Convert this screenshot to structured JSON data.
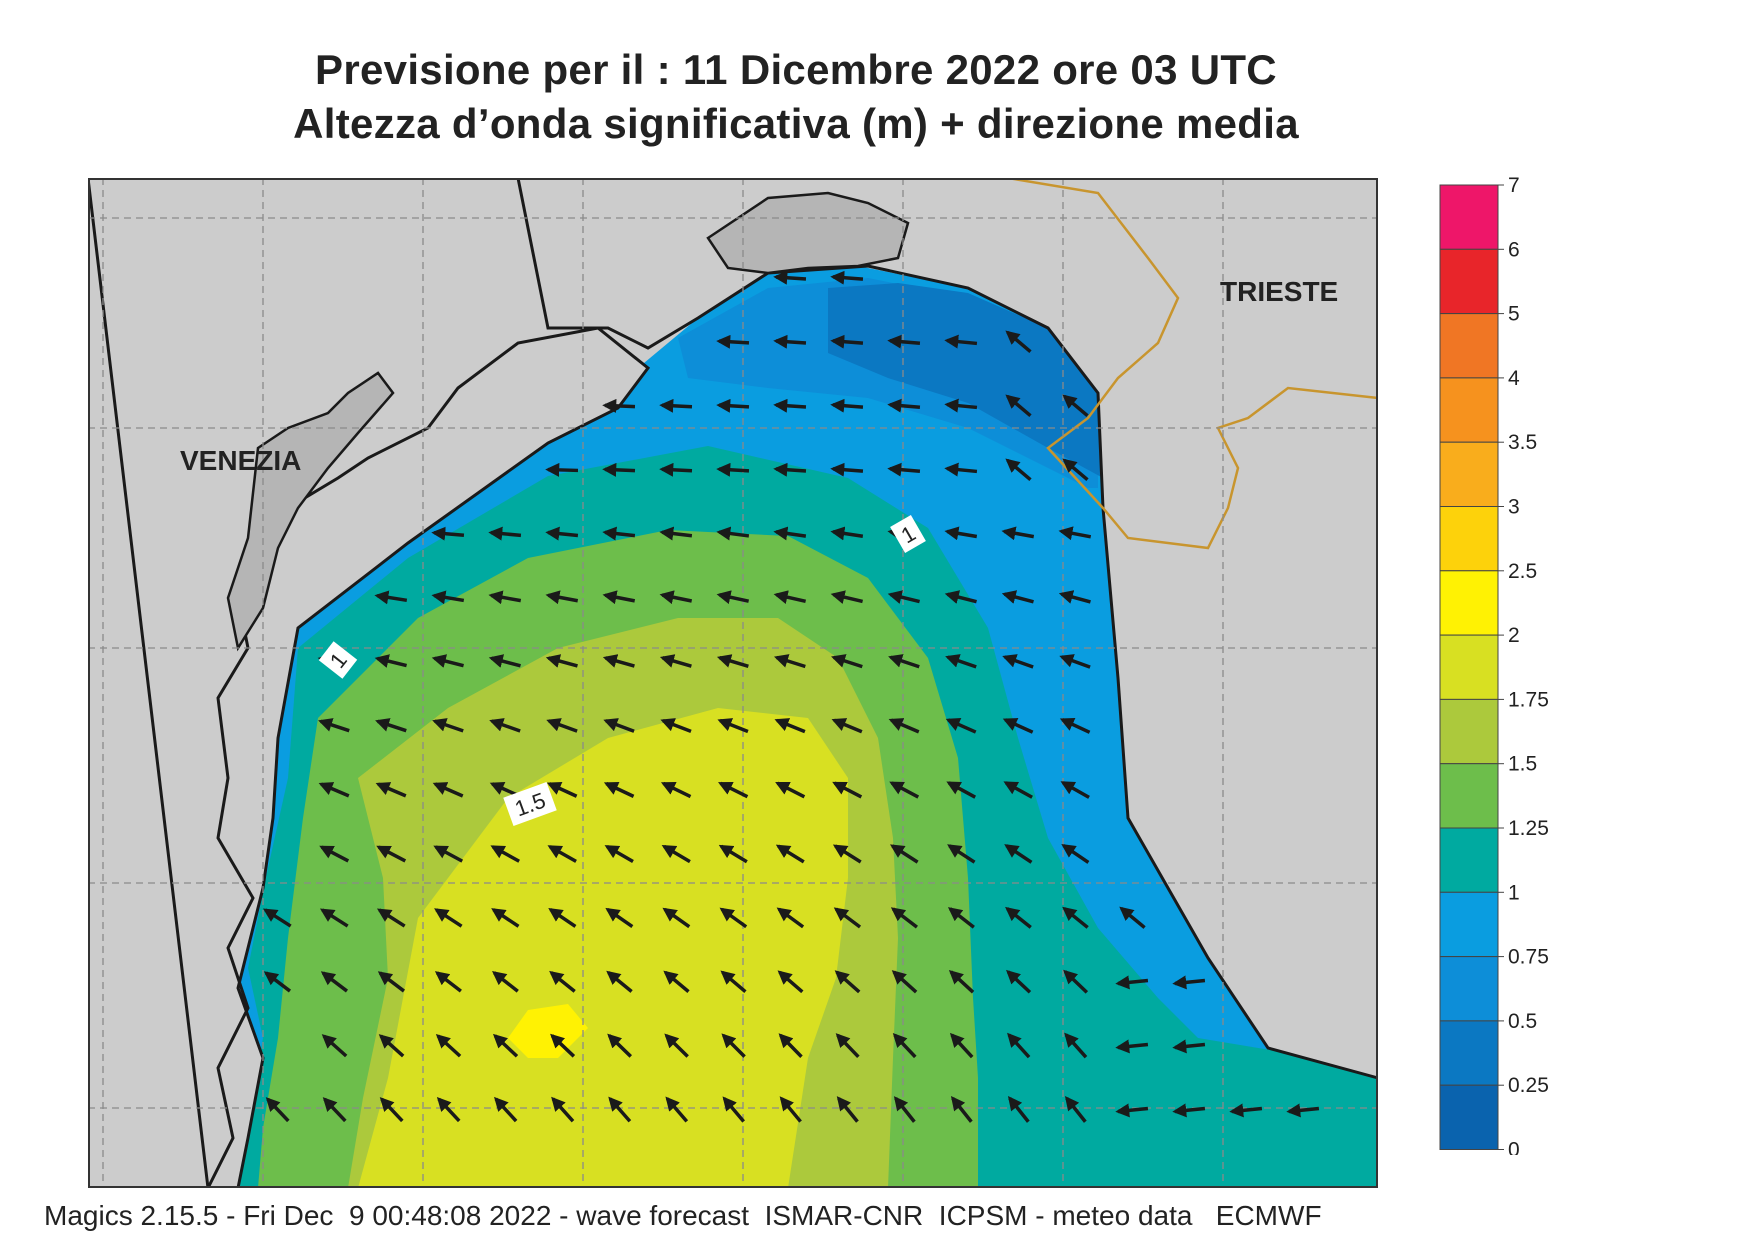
{
  "title": {
    "line1": "Previsione per il  :  11 Dicembre  2022   ore 03 UTC",
    "line2": "Altezza d’onda significativa (m) + direzione media"
  },
  "map": {
    "place_labels": [
      "VENEZIA",
      "TRIESTE"
    ],
    "contour_labels": [
      "1",
      "1",
      "1.5"
    ],
    "colors": {
      "land": "#cccccc",
      "coast": "#1a1a1a",
      "border": "#c8952e",
      "arrows": "#1a1a1a",
      "grid": "#8a8a8a"
    }
  },
  "legend": {
    "ticks": [
      "7",
      "6",
      "5",
      "4",
      "3.5",
      "3",
      "2.5",
      "2",
      "1.75",
      "1.5",
      "1.25",
      "1",
      "0.75",
      "0.5",
      "0.25",
      "0"
    ],
    "colors_top_to_bottom": [
      "#ee1669",
      "#e8252a",
      "#f07624",
      "#f6921e",
      "#f9ad1c",
      "#fdd20b",
      "#fff203",
      "#d8e022",
      "#acc93c",
      "#6dbe4b",
      "#00aaa0",
      "#0a9de0",
      "#0d8ed8",
      "#0b78c2",
      "#0a63ae"
    ]
  },
  "footer": "Magics 2.15.5 - Fri Dec  9 00:48:08 2022 - wave forecast  ISMAR-CNR  ICPSM - meteo data   ECMWF"
}
